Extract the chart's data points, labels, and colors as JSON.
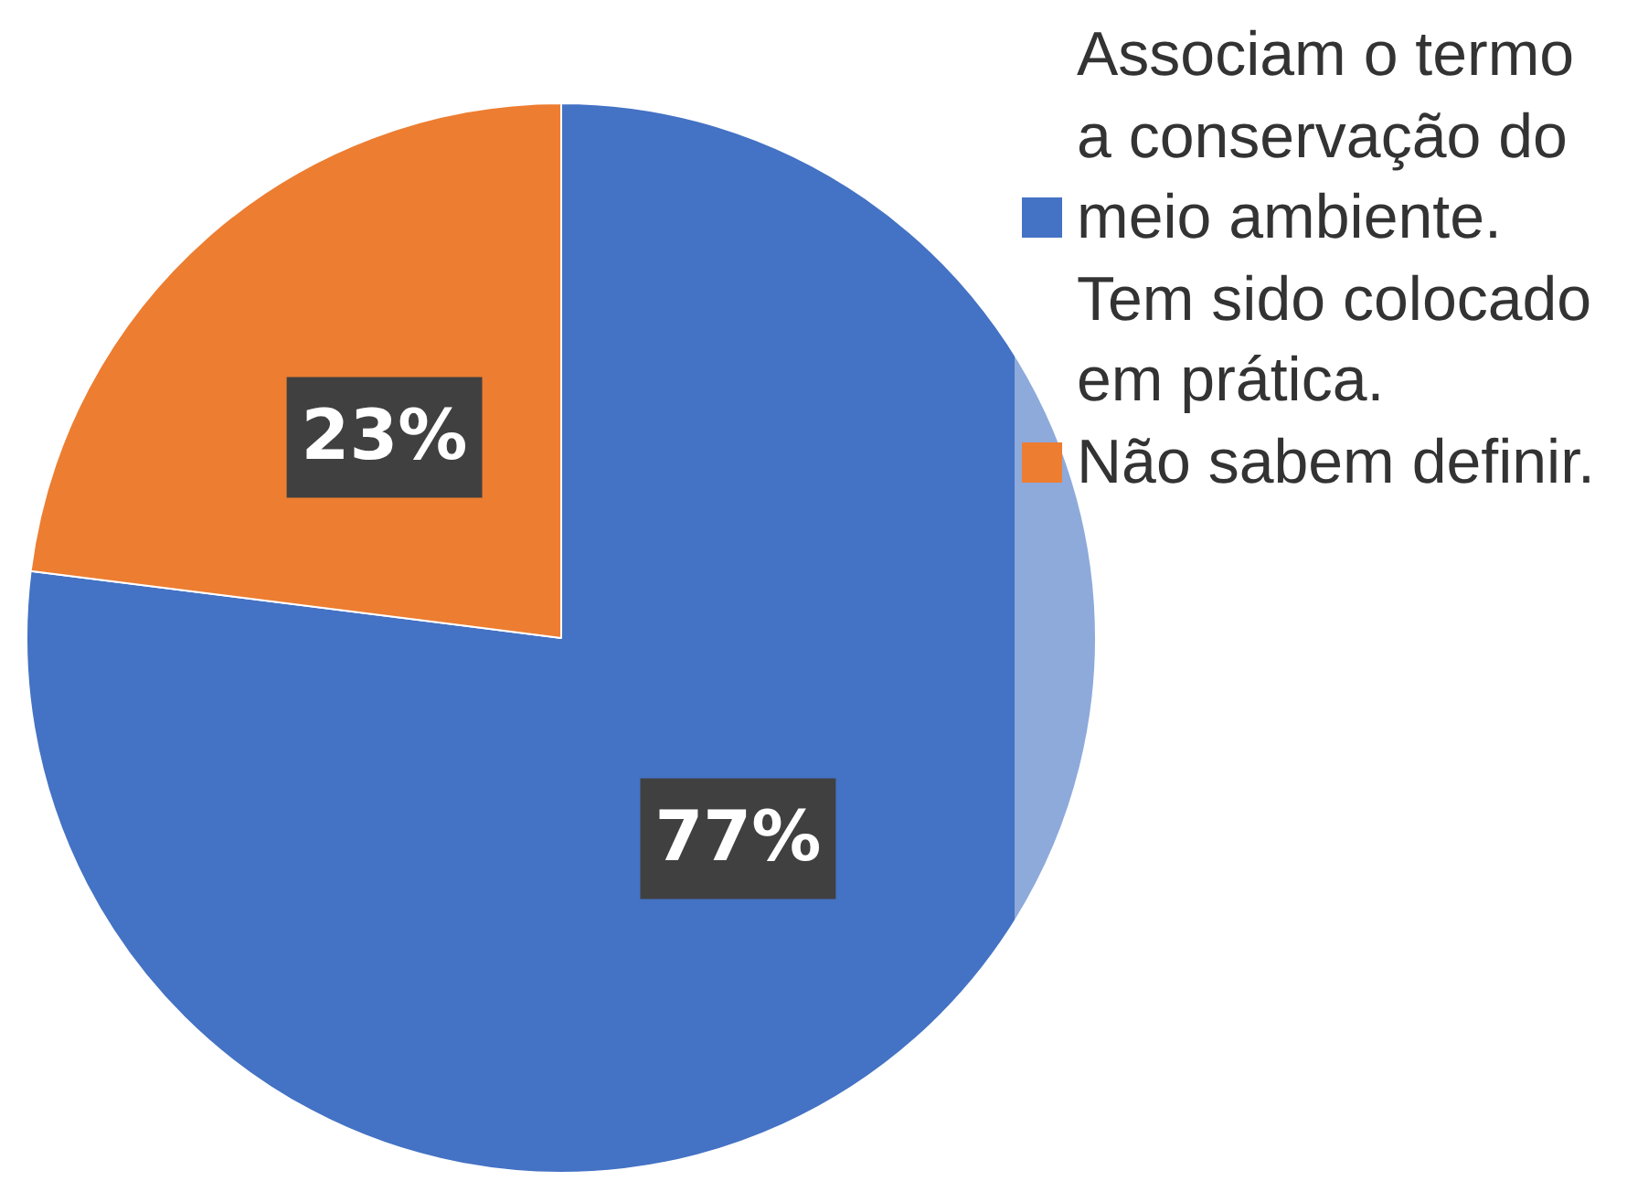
{
  "chart_data": {
    "type": "pie",
    "categories": [
      "Associam o termo a conservação do meio ambiente. Tem sido colocado em prática.",
      "Não sabem definir."
    ],
    "values": [
      77,
      23
    ],
    "colors": [
      "#4472c4",
      "#ed7d31"
    ],
    "value_labels": [
      "77%",
      "23%"
    ],
    "legend": "right"
  }
}
